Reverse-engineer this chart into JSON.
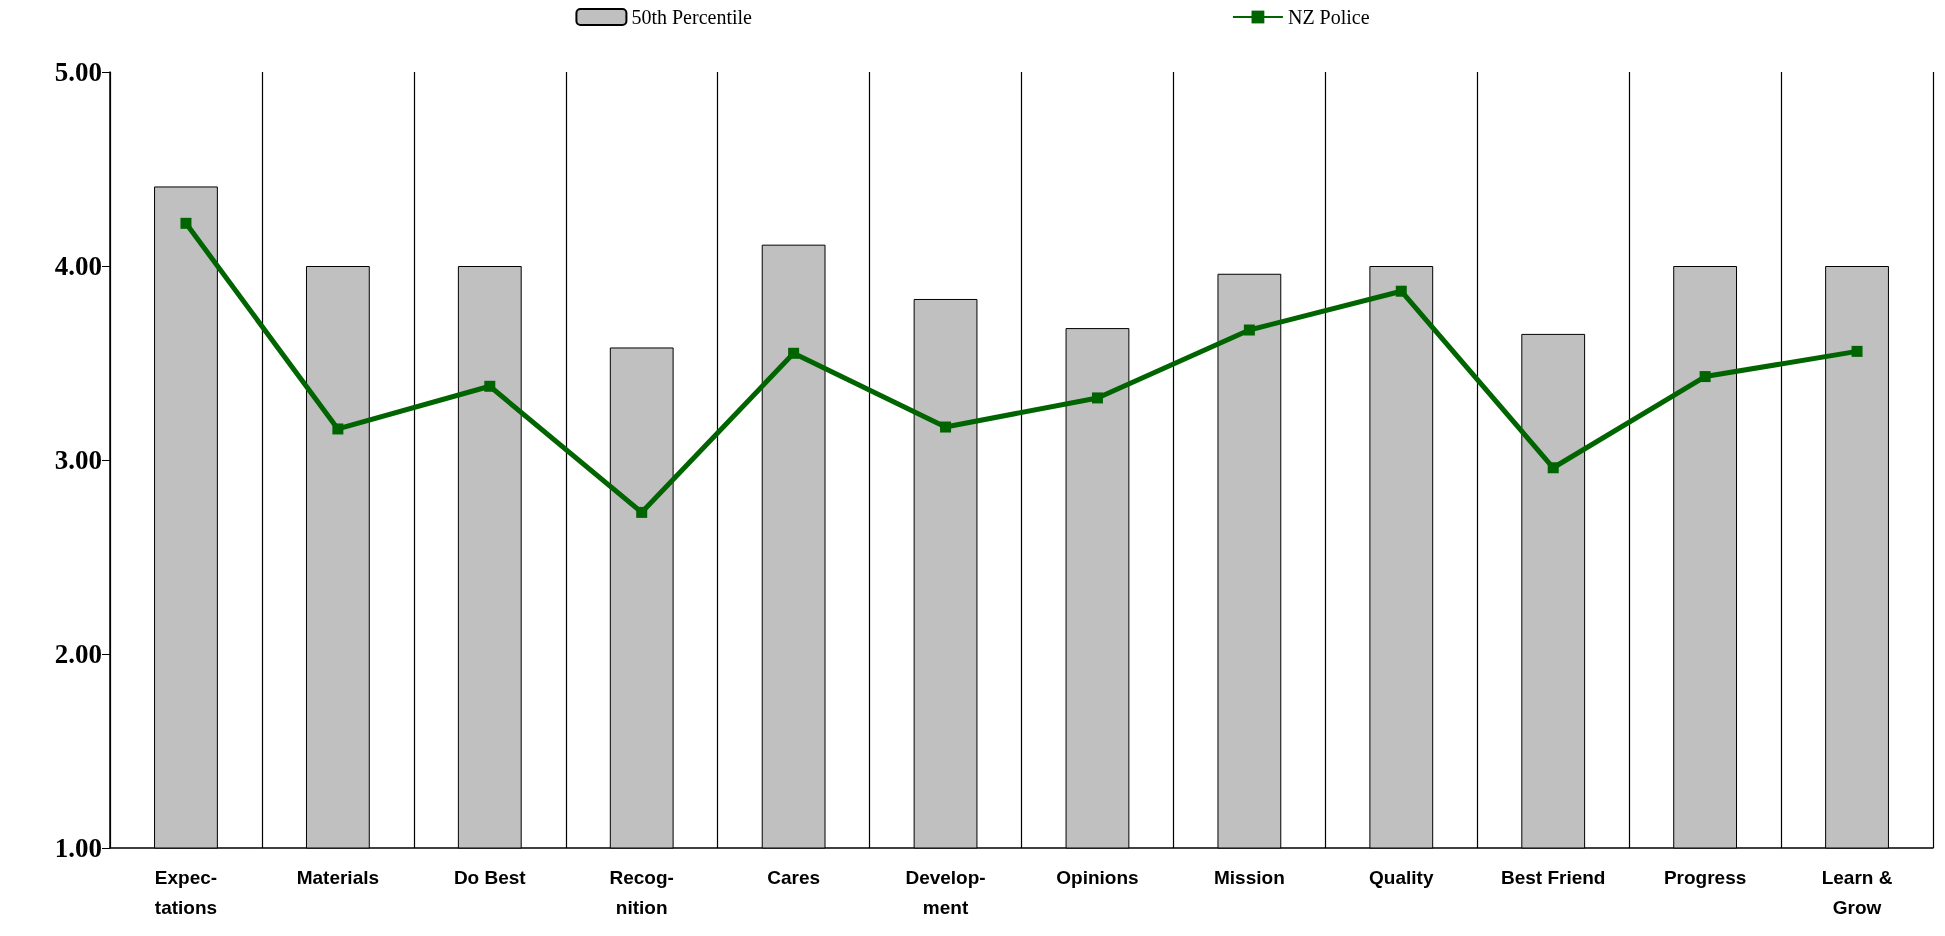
{
  "chart_data": {
    "type": "bar",
    "categories": [
      "Expec-\ntations",
      "Materials",
      "Do Best",
      "Recog-\nnition",
      "Cares",
      "Develop-\nment",
      "Opinions",
      "Mission",
      "Quality",
      "Best Friend",
      "Progress",
      "Learn &\nGrow"
    ],
    "series": [
      {
        "name": "50th Percentile",
        "color": "#c0c0c0",
        "values": [
          4.41,
          4.0,
          4.0,
          3.58,
          4.11,
          3.83,
          3.68,
          3.96,
          4.0,
          3.65,
          4.0,
          4.0
        ]
      },
      {
        "name": "NZ Police",
        "type": "line",
        "color": "#006400",
        "values": [
          4.22,
          3.16,
          3.38,
          2.73,
          3.55,
          3.17,
          3.32,
          3.67,
          3.87,
          2.96,
          3.43,
          3.56
        ]
      }
    ],
    "ylim": [
      1,
      5
    ],
    "yticks": [
      {
        "value": 1,
        "label": "1.00"
      },
      {
        "value": 2,
        "label": "2.00"
      },
      {
        "value": 3,
        "label": "3.00"
      },
      {
        "value": 4,
        "label": "4.00"
      },
      {
        "value": 5,
        "label": "5.00"
      }
    ],
    "grid": "x",
    "legend": "top",
    "marker": "square",
    "line_style": "solid"
  }
}
